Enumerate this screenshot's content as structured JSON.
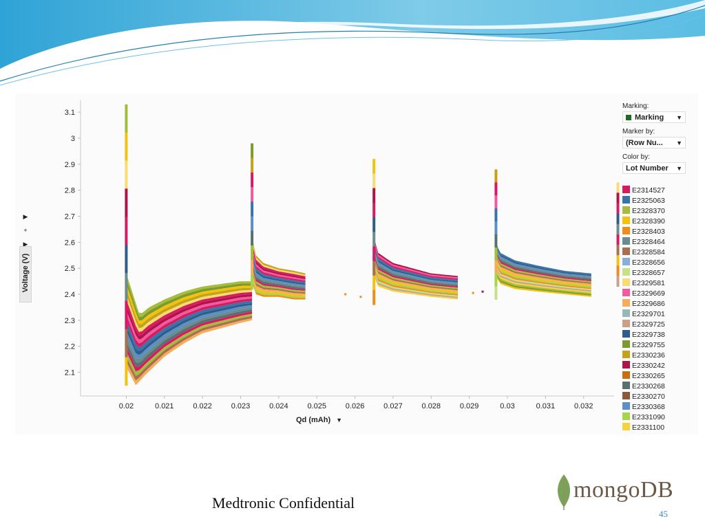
{
  "chart_data": {
    "type": "scatter",
    "title": "",
    "xlabel": "Qd (mAh)",
    "ylabel": "Voltage (V)",
    "xlim": [
      0.0188,
      0.0328
    ],
    "ylim": [
      2.03,
      3.14
    ],
    "x_ticks": [
      "0.02",
      "0.021",
      "0.022",
      "0.023",
      "0.024",
      "0.025",
      "0.026",
      "0.027",
      "0.028",
      "0.029",
      "0.03",
      "0.031",
      "0.032"
    ],
    "y_ticks": [
      "2.1",
      "2.2",
      "2.3",
      "2.4",
      "2.5",
      "2.6",
      "2.7",
      "2.8",
      "2.9",
      "3",
      "3.1"
    ],
    "grid": false,
    "legend_position": "right",
    "series": [
      {
        "name": "E2314527",
        "color": "#d81b60"
      },
      {
        "name": "E2325063",
        "color": "#3a73a8"
      },
      {
        "name": "E2328370",
        "color": "#a4bd3c"
      },
      {
        "name": "E2328390",
        "color": "#f4c20d"
      },
      {
        "name": "E2328403",
        "color": "#ef8c1b"
      },
      {
        "name": "E2328464",
        "color": "#6b8c8c"
      },
      {
        "name": "E2328584",
        "color": "#a87050"
      },
      {
        "name": "E2328656",
        "color": "#88aedb"
      },
      {
        "name": "E2328657",
        "color": "#c7e08a"
      },
      {
        "name": "E2329581",
        "color": "#f8dc72"
      },
      {
        "name": "E2329669",
        "color": "#f25aa0"
      },
      {
        "name": "E2329686",
        "color": "#f6ac5a"
      },
      {
        "name": "E2329701",
        "color": "#98b7b7"
      },
      {
        "name": "E2329725",
        "color": "#c9a188"
      },
      {
        "name": "E2329738",
        "color": "#2f5d8a"
      },
      {
        "name": "E2329755",
        "color": "#7d9a2c"
      },
      {
        "name": "E2330236",
        "color": "#c4a21a"
      },
      {
        "name": "E2330242",
        "color": "#b0124a"
      },
      {
        "name": "E2330265",
        "color": "#c86e10"
      },
      {
        "name": "E2330268",
        "color": "#587070"
      },
      {
        "name": "E2330270",
        "color": "#8a5a3a"
      },
      {
        "name": "E2330368",
        "color": "#5b8fc5"
      },
      {
        "name": "E2331090",
        "color": "#a8d44a"
      },
      {
        "name": "E2331100",
        "color": "#f6d23e"
      }
    ],
    "bands": [
      {
        "x0": 0.02,
        "x1": 0.0233,
        "top": [
          [
            0.02,
            2.48
          ],
          [
            0.02035,
            2.32
          ],
          [
            0.0206,
            2.35
          ],
          [
            0.021,
            2.38
          ],
          [
            0.0215,
            2.41
          ],
          [
            0.022,
            2.43
          ],
          [
            0.0225,
            2.44
          ],
          [
            0.023,
            2.45
          ],
          [
            0.0233,
            2.45
          ]
        ],
        "bottom": [
          [
            0.02,
            2.12
          ],
          [
            0.02025,
            2.05
          ],
          [
            0.0205,
            2.09
          ],
          [
            0.021,
            2.16
          ],
          [
            0.0215,
            2.21
          ],
          [
            0.022,
            2.25
          ],
          [
            0.0225,
            2.27
          ],
          [
            0.023,
            2.29
          ],
          [
            0.0233,
            2.3
          ]
        ]
      },
      {
        "x0": 0.0233,
        "x1": 0.0247,
        "top": [
          [
            0.0233,
            2.62
          ],
          [
            0.0234,
            2.55
          ],
          [
            0.0236,
            2.52
          ],
          [
            0.024,
            2.5
          ],
          [
            0.0244,
            2.49
          ],
          [
            0.0247,
            2.48
          ]
        ],
        "bottom": [
          [
            0.0233,
            2.45
          ],
          [
            0.0234,
            2.4
          ],
          [
            0.0236,
            2.39
          ],
          [
            0.024,
            2.39
          ],
          [
            0.0244,
            2.38
          ],
          [
            0.0247,
            2.38
          ]
        ]
      },
      {
        "x0": 0.0265,
        "x1": 0.0287,
        "top": [
          [
            0.0265,
            2.62
          ],
          [
            0.0266,
            2.56
          ],
          [
            0.027,
            2.52
          ],
          [
            0.0275,
            2.5
          ],
          [
            0.028,
            2.48
          ],
          [
            0.0287,
            2.47
          ]
        ],
        "bottom": [
          [
            0.0265,
            2.47
          ],
          [
            0.0266,
            2.43
          ],
          [
            0.027,
            2.41
          ],
          [
            0.0275,
            2.4
          ],
          [
            0.028,
            2.39
          ],
          [
            0.0287,
            2.38
          ]
        ]
      },
      {
        "x0": 0.0297,
        "x1": 0.0322,
        "top": [
          [
            0.0297,
            2.6
          ],
          [
            0.0298,
            2.56
          ],
          [
            0.0302,
            2.53
          ],
          [
            0.0308,
            2.51
          ],
          [
            0.0315,
            2.49
          ],
          [
            0.0322,
            2.48
          ]
        ],
        "bottom": [
          [
            0.0297,
            2.47
          ],
          [
            0.0298,
            2.44
          ],
          [
            0.0302,
            2.42
          ],
          [
            0.0308,
            2.41
          ],
          [
            0.0315,
            2.4
          ],
          [
            0.0322,
            2.39
          ]
        ]
      }
    ],
    "spikes": [
      {
        "x": 0.02,
        "y0": 2.05,
        "y1": 3.13
      },
      {
        "x": 0.0233,
        "y0": 2.42,
        "y1": 2.98
      },
      {
        "x": 0.0265,
        "y0": 2.36,
        "y1": 2.92
      },
      {
        "x": 0.0297,
        "y0": 2.38,
        "y1": 2.88
      },
      {
        "x": 0.0329,
        "y0": 2.43,
        "y1": 2.83
      }
    ],
    "isolated_points": [
      {
        "x": 0.02575,
        "y": 2.4
      },
      {
        "x": 0.02615,
        "y": 2.39
      },
      {
        "x": 0.0291,
        "y": 2.405
      },
      {
        "x": 0.02935,
        "y": 2.41
      }
    ]
  },
  "panel": {
    "marking_label": "Marking:",
    "marking_value": "Marking",
    "marking_color": "#1e6b23",
    "marker_by_label": "Marker by:",
    "marker_by_value": "(Row Nu...",
    "color_by_label": "Color by:",
    "color_by_value": "Lot Number"
  },
  "footer": {
    "confidential": "Medtronic Confidential",
    "page_number": "45",
    "logo_text": "mongoDB"
  }
}
